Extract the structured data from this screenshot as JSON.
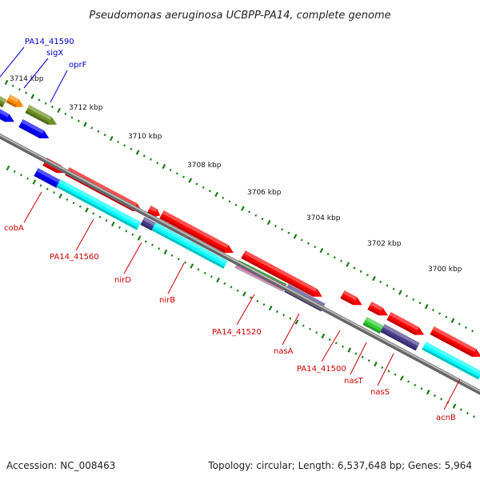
{
  "title": "Pseudomonas aeruginosa UCBPP-PA14, complete genome",
  "footer": {
    "accession": "Accession: NC_008463",
    "topology": "Topology: circular; Length: 6,537,648 bp; Genes: 5,964"
  },
  "scale_labels": [
    "3714 kbp",
    "3712 kbp",
    "3710 kbp",
    "3708 kbp",
    "3706 kbp",
    "3704 kbp",
    "3702 kbp",
    "3700 kbp"
  ],
  "forward_labels": [
    "PA14_41590",
    "sigX",
    "oprF"
  ],
  "reverse_labels": [
    "cobA",
    "PA14_41560",
    "nirD",
    "nirB",
    "PA14_41520",
    "nasA",
    "PA14_41500",
    "nasT",
    "nasS",
    "acnB"
  ],
  "colors": {
    "forward_label": "#0000cc",
    "reverse_label": "#cc0000",
    "backbone": "#888888",
    "ticks": "#1a7a1a",
    "red_gene": "#ff0000",
    "cyan_gene": "#00ffff",
    "blue_gene": "#0000ff",
    "olive_gene": "#6b8e23",
    "orange_gene": "#ff8c00",
    "slate_gene": "#483d8b",
    "green_gene": "#32cd32"
  }
}
